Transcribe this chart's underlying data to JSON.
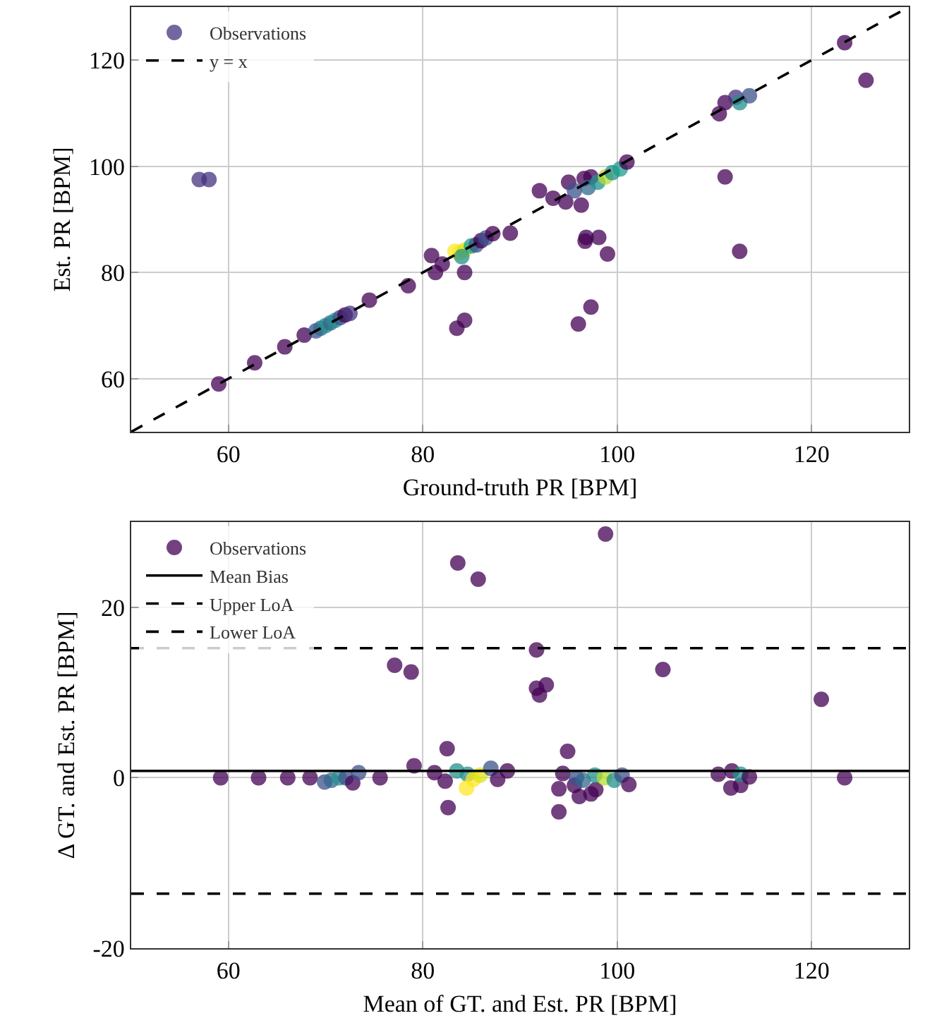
{
  "chart_data": [
    {
      "type": "scatter",
      "xlabel": "Ground-truth PR [BPM]",
      "ylabel": "Est. PR [BPM]",
      "xlim": [
        50,
        130
      ],
      "ylim": [
        50,
        130
      ],
      "xticks": [
        60,
        80,
        100,
        120
      ],
      "yticks": [
        60,
        80,
        100,
        120
      ],
      "grid": true,
      "legend": "top left",
      "marker": "circle",
      "series": [
        {
          "name": "Observations",
          "x": [
            57,
            58,
            59,
            62.7,
            65.8,
            67.8,
            69,
            69.5,
            70,
            70.5,
            71,
            71.5,
            72,
            72.5,
            74.5,
            78.5,
            80.9,
            81.3,
            82,
            84.3,
            83.5,
            84.3,
            83.3,
            83.8,
            84.3,
            84,
            85,
            85.5,
            86,
            86.5,
            87.2,
            89,
            92,
            93.4,
            94.7,
            95,
            96.3,
            96.6,
            97.3,
            96.8,
            96.7,
            98.1,
            99,
            96,
            97.3,
            95.6,
            97,
            98,
            98.8,
            99.5,
            100.3,
            101,
            110.5,
            111.1,
            112.2,
            112.6,
            113.6,
            111.1,
            112.6,
            123.4,
            125.6
          ],
          "values": [
            97.5,
            97.5,
            59,
            63,
            66,
            68.2,
            69,
            69.5,
            70,
            70.5,
            71,
            71.5,
            72,
            72.3,
            74.8,
            77.5,
            83.2,
            80,
            81.6,
            80,
            69.5,
            71,
            84,
            83.8,
            84.2,
            83,
            85,
            85.2,
            86,
            86.5,
            87.3,
            87.4,
            95.4,
            94,
            93.3,
            97,
            92.7,
            97.7,
            98,
            86.6,
            85.9,
            86.6,
            83.5,
            70.3,
            73.5,
            95.4,
            96,
            97,
            98,
            98.8,
            99.5,
            100.8,
            109.9,
            112,
            113,
            112,
            113.3,
            98,
            84,
            123.3,
            116.2
          ],
          "colors": [
            "#46337e",
            "#46337e",
            "#440154",
            "#440154",
            "#440154",
            "#440154",
            "#3b528b",
            "#31688e",
            "#21918c",
            "#31688e",
            "#21918c",
            "#3b528b",
            "#440154",
            "#46337e",
            "#440154",
            "#440154",
            "#440154",
            "#440154",
            "#440154",
            "#440154",
            "#440154",
            "#440154",
            "#fde725",
            "#fde725",
            "#dde318",
            "#21918c",
            "#1f9e89",
            "#3b528b",
            "#440154",
            "#3b528b",
            "#440154",
            "#440154",
            "#440154",
            "#440154",
            "#440154",
            "#440154",
            "#440154",
            "#440154",
            "#440154",
            "#440154",
            "#440154",
            "#440154",
            "#440154",
            "#440154",
            "#440154",
            "#3b528b",
            "#31688e",
            "#21918c",
            "#b5de2b",
            "#21918c",
            "#1f9e89",
            "#440154",
            "#440154",
            "#440154",
            "#46337e",
            "#21918c",
            "#3b528b",
            "#440154",
            "#440154",
            "#440154",
            "#440154"
          ]
        },
        {
          "name": "y = x",
          "type": "line",
          "marker": "none",
          "line_style": "dashed",
          "color": "#000000",
          "x": [
            50,
            130
          ],
          "values": [
            50,
            130
          ]
        }
      ]
    },
    {
      "type": "scatter",
      "xlabel": "Mean of GT. and Est. PR [BPM]",
      "ylabel": "Δ GT. and Est. PR [BPM]",
      "xlim": [
        50,
        130
      ],
      "ylim": [
        -20,
        30
      ],
      "xticks": [
        60,
        80,
        100,
        120
      ],
      "yticks": [
        -20,
        0,
        20
      ],
      "grid": true,
      "legend": "top left",
      "marker": "circle",
      "series": [
        {
          "name": "Observations",
          "x": [
            83.6,
            85.7,
            77.1,
            78.8,
            59.2,
            63.1,
            66.1,
            68.4,
            69.9,
            70.6,
            71.4,
            72.1,
            72.8,
            73.4,
            75.6,
            79.1,
            81.2,
            82.5,
            82.3,
            82.6,
            83.5,
            84.6,
            84.5,
            85.2,
            85.9,
            87,
            87.7,
            88.7,
            98.8,
            91.7,
            91.7,
            92,
            92.7,
            104.7,
            121,
            94.9,
            94.4,
            94,
            94,
            95.6,
            96.1,
            97.3,
            97.8,
            95.8,
            96.5,
            97.7,
            98.7,
            99.7,
            100.5,
            101.2,
            110.4,
            111.8,
            111.7,
            112.7,
            112.7,
            113.6,
            123.4
          ],
          "values": [
            25.2,
            23.3,
            13.2,
            12.4,
            0,
            0,
            0,
            0,
            -0.5,
            -0.3,
            0,
            0,
            -0.6,
            0.6,
            0,
            1.4,
            0.6,
            3.4,
            -0.4,
            -3.5,
            0.8,
            0.4,
            -1.2,
            -0.2,
            0.3,
            1.1,
            -0.2,
            0.8,
            28.6,
            15,
            10.5,
            9.7,
            10.9,
            12.7,
            9.2,
            3.1,
            0.5,
            -1.3,
            -4,
            -0.9,
            -2.2,
            -1.9,
            -1.4,
            0,
            -0.3,
            0.3,
            0,
            -0.3,
            0.3,
            -0.8,
            0.4,
            0.8,
            -1.2,
            -0.9,
            0.4,
            0.1,
            0
          ],
          "colors": [
            "#440154",
            "#440154",
            "#440154",
            "#440154",
            "#440154",
            "#440154",
            "#440154",
            "#440154",
            "#3b528b",
            "#31688e",
            "#21918c",
            "#3b528b",
            "#440154",
            "#3b528b",
            "#440154",
            "#440154",
            "#440154",
            "#440154",
            "#440154",
            "#440154",
            "#21918c",
            "#21918c",
            "#fde725",
            "#fde725",
            "#dde318",
            "#3b528b",
            "#440154",
            "#440154",
            "#440154",
            "#440154",
            "#440154",
            "#440154",
            "#440154",
            "#440154",
            "#440154",
            "#440154",
            "#440154",
            "#440154",
            "#440154",
            "#440154",
            "#440154",
            "#440154",
            "#440154",
            "#3b528b",
            "#31688e",
            "#21918c",
            "#b5de2b",
            "#21918c",
            "#3b528b",
            "#440154",
            "#440154",
            "#440154",
            "#440154",
            "#440154",
            "#21918c",
            "#440154",
            "#440154"
          ]
        }
      ],
      "ref_lines": [
        {
          "axis": "y",
          "value": 0.8,
          "label": "Mean Bias",
          "color": "#000000",
          "line_style": "solid"
        },
        {
          "axis": "y",
          "value": 15.2,
          "label": "Upper LoA",
          "color": "#000000",
          "line_style": "dashed"
        },
        {
          "axis": "y",
          "value": -13.6,
          "label": "Lower LoA",
          "color": "#000000",
          "line_style": "dashed"
        }
      ]
    }
  ]
}
